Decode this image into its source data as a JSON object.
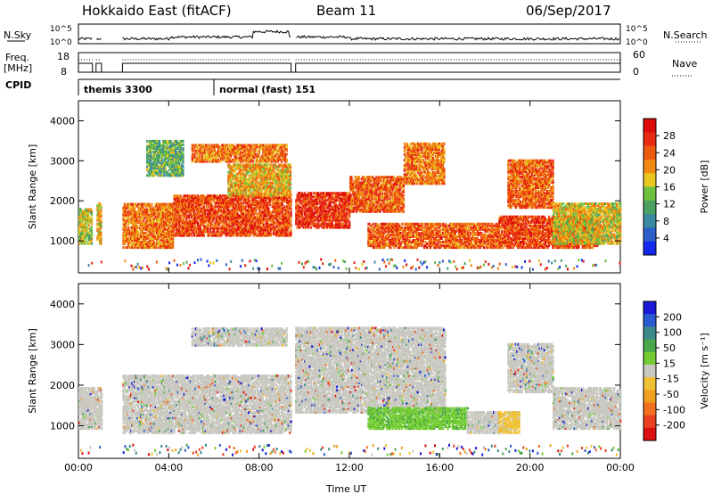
{
  "header": {
    "title": "Hokkaido East (fitACF)",
    "beam": "Beam 11",
    "date": "06/Sep/2017"
  },
  "top_panels": {
    "nsky_label": "N.Sky",
    "nsky_ticks": [
      "10^5",
      "10^0"
    ],
    "nsky_right_ticks": [
      "10^5",
      "10^0"
    ],
    "nsearch_label": "N.Search",
    "freq_label_1": "Freq.",
    "freq_label_2": "[MHz]",
    "freq_ticks": [
      "18",
      "8"
    ],
    "nave_ticks": [
      "60",
      "0"
    ],
    "nave_label": "Nave",
    "cpid_label": "CPID",
    "cpid_modes": [
      {
        "name": "themis 3300",
        "start": 0.0,
        "end": 6.0
      },
      {
        "name": "normal (fast) 151",
        "start": 6.0,
        "end": 24.0
      }
    ]
  },
  "colors": {
    "power_scale": [
      "#1428f0",
      "#2c60c8",
      "#3a8aa0",
      "#4aa060",
      "#6cc040",
      "#e8c820",
      "#f08a10",
      "#ee5a10",
      "#e82a10",
      "#dd0a0a"
    ],
    "velocity_scale": [
      "#1a1ad8",
      "#2a5ad0",
      "#3a8a8a",
      "#4aa84a",
      "#74cc34",
      "#c8c8c0",
      "#f0c030",
      "#f0a020",
      "#f07020",
      "#e84020",
      "#dd1010"
    ]
  },
  "chart_data": [
    {
      "type": "heatmap",
      "name": "power",
      "ylabel": "Slant Range [km]",
      "ylim": [
        200,
        4500
      ],
      "yticks": [
        "1000",
        "2000",
        "3000",
        "4000"
      ],
      "xlim": [
        0,
        24
      ],
      "xticks": [
        "00:00",
        "04:00",
        "08:00",
        "12:00",
        "16:00",
        "20:00",
        "00:00"
      ],
      "colorbar": {
        "label": "Power [dB]",
        "ticks": [
          "4",
          "8",
          "12",
          "16",
          "20",
          "24",
          "28"
        ]
      },
      "regions": [
        {
          "t0": 0.0,
          "t1": 0.6,
          "r0": 900,
          "r1": 1800,
          "level": 0.5
        },
        {
          "t0": 0.8,
          "t1": 1.0,
          "r0": 900,
          "r1": 1900,
          "level": 0.6
        },
        {
          "t0": 1.95,
          "t1": 4.2,
          "r0": 800,
          "r1": 1900,
          "level": 0.7
        },
        {
          "t0": 4.2,
          "t1": 9.4,
          "r0": 1100,
          "r1": 2100,
          "level": 0.8
        },
        {
          "t0": 6.6,
          "t1": 9.4,
          "r0": 2100,
          "r1": 2900,
          "level": 0.6
        },
        {
          "t0": 5.0,
          "t1": 9.2,
          "r0": 2950,
          "r1": 3400,
          "level": 0.7
        },
        {
          "t0": 3.0,
          "t1": 4.6,
          "r0": 2600,
          "r1": 3500,
          "level": 0.4
        },
        {
          "t0": 9.6,
          "t1": 12.0,
          "r0": 1300,
          "r1": 2200,
          "level": 0.85
        },
        {
          "t0": 12.0,
          "t1": 14.4,
          "r0": 1700,
          "r1": 2600,
          "level": 0.75
        },
        {
          "t0": 14.4,
          "t1": 16.2,
          "r0": 2400,
          "r1": 3400,
          "level": 0.7
        },
        {
          "t0": 12.8,
          "t1": 18.6,
          "r0": 800,
          "r1": 1400,
          "level": 0.75
        },
        {
          "t0": 18.6,
          "t1": 23.0,
          "r0": 800,
          "r1": 1600,
          "level": 0.8
        },
        {
          "t0": 19.0,
          "t1": 21.0,
          "r0": 1800,
          "r1": 3000,
          "level": 0.75
        },
        {
          "t0": 21.0,
          "t1": 24.0,
          "r0": 900,
          "r1": 1900,
          "level": 0.55
        }
      ]
    },
    {
      "type": "heatmap",
      "name": "velocity",
      "ylabel": "Slant Range [km]",
      "ylim": [
        200,
        4500
      ],
      "yticks": [
        "1000",
        "2000",
        "3000",
        "4000"
      ],
      "xlim": [
        0,
        24
      ],
      "xticks": [
        "00:00",
        "04:00",
        "08:00",
        "12:00",
        "16:00",
        "20:00",
        "00:00"
      ],
      "xlabel": "Time UT",
      "colorbar": {
        "label": "Velocity [m s⁻¹]",
        "ticks": [
          "200",
          "100",
          "50",
          "15",
          "-15",
          "-50",
          "-100",
          "-200"
        ]
      },
      "regions": [
        {
          "t0": 0.0,
          "t1": 1.0,
          "r0": 900,
          "r1": 1900,
          "level": 0.5
        },
        {
          "t0": 1.95,
          "t1": 9.4,
          "r0": 800,
          "r1": 2200,
          "level": 0.5
        },
        {
          "t0": 5.0,
          "t1": 9.2,
          "r0": 2950,
          "r1": 3400,
          "level": 0.5
        },
        {
          "t0": 9.6,
          "t1": 16.2,
          "r0": 1300,
          "r1": 3400,
          "level": 0.5
        },
        {
          "t0": 12.8,
          "t1": 17.2,
          "r0": 900,
          "r1": 1400,
          "level": 0.3
        },
        {
          "t0": 17.2,
          "t1": 18.6,
          "r0": 800,
          "r1": 1300,
          "level": 0.5
        },
        {
          "t0": 18.6,
          "t1": 19.5,
          "r0": 800,
          "r1": 1300,
          "level": 0.7
        },
        {
          "t0": 19.0,
          "t1": 21.0,
          "r0": 1800,
          "r1": 3000,
          "level": 0.5
        },
        {
          "t0": 21.0,
          "t1": 24.0,
          "r0": 900,
          "r1": 1900,
          "level": 0.5
        }
      ]
    }
  ]
}
